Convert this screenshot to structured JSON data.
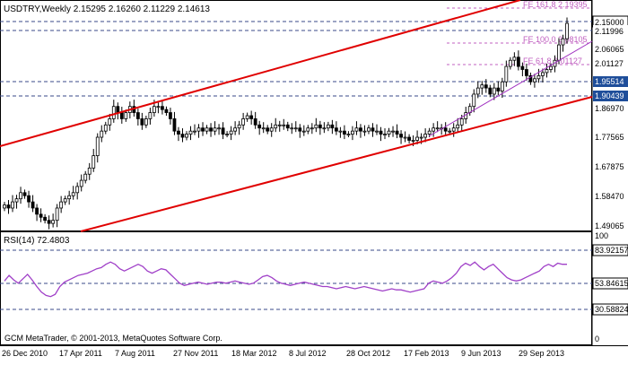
{
  "main_chart": {
    "symbol_header": "USDTRY,Weekly  2.15295 2.16260 2.11229 2.14613",
    "current_price": "2.15000",
    "price_labels": [
      "2.11996",
      "2.06065",
      "2.01127",
      "1.95514",
      "1.90439",
      "1.86970",
      "1.77565",
      "1.67875",
      "1.58470",
      "1.49065"
    ],
    "fib_labels": [
      "FE 161.8 2.19395",
      "FE 100.0 2.08105",
      "FE 61.8 2.01127"
    ],
    "copyright": "GCM MetaTrader, © 2001-2013, MetaQuotes Software Corp."
  },
  "rsi_panel": {
    "title": "RSI(14) 72.4803",
    "level_labels": [
      "83.92157",
      "53.84615",
      "30.58824"
    ],
    "axis_labels": [
      "100",
      "0"
    ]
  },
  "time_axis": [
    "26 Dec 2010",
    "17 Apr 2011",
    "7 Aug 2011",
    "27 Nov 2011",
    "18 Mar 2012",
    "8 Jul 2012",
    "28 Oct 2012",
    "17 Feb 2013",
    "9 Jun 2013",
    "29 Sep 2013"
  ],
  "colors": {
    "bull_candle": "#ffffff",
    "bear_candle": "#000000",
    "channel_lines": "#e00000",
    "trendline": "#a030c0",
    "fib_lines": "#c060c0",
    "rsi_line": "#a040c8",
    "grid_dashes": "#3a4a8a",
    "highlight_label": "#1f4e9a"
  },
  "chart_data": {
    "type": "candlestick",
    "symbol": "USDTRY",
    "timeframe": "Weekly",
    "last_bar": {
      "open": 2.15295,
      "high": 2.1626,
      "low": 2.11229,
      "close": 2.14613
    },
    "ylim": [
      1.48,
      2.22
    ],
    "x_tick_labels": [
      "26 Dec 2010",
      "17 Apr 2011",
      "7 Aug 2011",
      "27 Nov 2011",
      "18 Mar 2012",
      "8 Jul 2012",
      "28 Oct 2012",
      "17 Feb 2013",
      "9 Jun 2013",
      "29 Sep 2013"
    ],
    "y_tick_labels": [
      "2.11996",
      "2.06065",
      "2.01127",
      "1.95514",
      "1.90439",
      "1.86970",
      "1.77565",
      "1.67875",
      "1.58470",
      "1.49065"
    ],
    "series": [
      {
        "name": "USDTRY",
        "close_approx": [
          1.56,
          1.55,
          1.57,
          1.58,
          1.6,
          1.59,
          1.57,
          1.55,
          1.53,
          1.52,
          1.51,
          1.5,
          1.51,
          1.55,
          1.57,
          1.58,
          1.59,
          1.6,
          1.62,
          1.64,
          1.66,
          1.68,
          1.72,
          1.78,
          1.8,
          1.82,
          1.84,
          1.88,
          1.86,
          1.84,
          1.86,
          1.88,
          1.86,
          1.84,
          1.82,
          1.84,
          1.86,
          1.88,
          1.88,
          1.87,
          1.86,
          1.84,
          1.8,
          1.79,
          1.78,
          1.79,
          1.8,
          1.8,
          1.81,
          1.8,
          1.81,
          1.8,
          1.81,
          1.81,
          1.79,
          1.79,
          1.8,
          1.81,
          1.82,
          1.84,
          1.85,
          1.84,
          1.82,
          1.81,
          1.81,
          1.8,
          1.81,
          1.82,
          1.82,
          1.82,
          1.81,
          1.81,
          1.81,
          1.8,
          1.8,
          1.81,
          1.81,
          1.82,
          1.81,
          1.81,
          1.82,
          1.81,
          1.8,
          1.8,
          1.79,
          1.79,
          1.8,
          1.81,
          1.8,
          1.8,
          1.81,
          1.8,
          1.8,
          1.79,
          1.79,
          1.8,
          1.8,
          1.79,
          1.78,
          1.78,
          1.77,
          1.77,
          1.78,
          1.78,
          1.79,
          1.8,
          1.81,
          1.81,
          1.81,
          1.8,
          1.8,
          1.81,
          1.82,
          1.84,
          1.86,
          1.88,
          1.92,
          1.94,
          1.95,
          1.94,
          1.92,
          1.94,
          1.93,
          1.96,
          2.01,
          2.03,
          2.04,
          2.01,
          2.0,
          1.98,
          1.96,
          1.97,
          1.98,
          1.99,
          2.0,
          2.01,
          2.03,
          2.08,
          2.1,
          2.15
        ]
      },
      {
        "name": "RSI(14)",
        "values_approx": [
          57,
          62,
          58,
          55,
          59,
          63,
          58,
          52,
          47,
          44,
          43,
          45,
          52,
          56,
          58,
          60,
          62,
          63,
          64,
          66,
          68,
          69,
          72,
          74,
          72,
          68,
          66,
          68,
          70,
          72,
          70,
          66,
          64,
          66,
          68,
          67,
          63,
          59,
          55,
          53,
          54,
          55,
          56,
          55,
          54,
          55,
          56,
          56,
          55,
          56,
          57,
          56,
          55,
          54,
          55,
          58,
          61,
          62,
          60,
          57,
          55,
          54,
          53,
          54,
          55,
          56,
          55,
          54,
          53,
          52,
          52,
          51,
          50,
          51,
          52,
          51,
          50,
          51,
          52,
          51,
          50,
          49,
          48,
          49,
          50,
          49,
          49,
          48,
          47,
          48,
          49,
          50,
          55,
          57,
          56,
          55,
          57,
          60,
          64,
          70,
          73,
          71,
          74,
          70,
          67,
          70,
          72,
          68,
          64,
          60,
          58,
          57,
          58,
          60,
          62,
          64,
          66,
          70,
          72,
          70,
          73,
          72,
          72
        ]
      }
    ],
    "rsi": {
      "period": 14,
      "value": 72.4803,
      "levels": [
        83.92157,
        53.84615,
        30.58824
      ]
    },
    "fibonacci_expansion": [
      {
        "label": "FE 161.8",
        "value": 2.19395
      },
      {
        "label": "FE 100.0",
        "value": 2.08105
      },
      {
        "label": "FE 61.8",
        "value": 2.01127
      }
    ],
    "horizontal_levels": [
      2.15,
      2.11996,
      1.95514,
      1.90439
    ]
  }
}
